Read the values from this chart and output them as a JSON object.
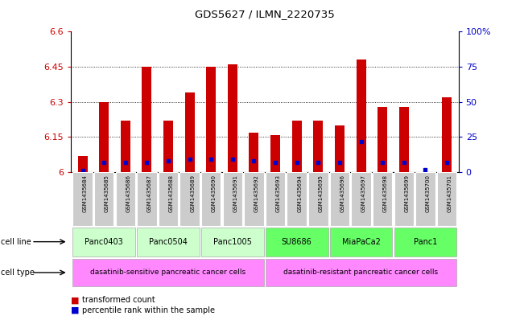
{
  "title": "GDS5627 / ILMN_2220735",
  "samples": [
    "GSM1435684",
    "GSM1435685",
    "GSM1435686",
    "GSM1435687",
    "GSM1435688",
    "GSM1435689",
    "GSM1435690",
    "GSM1435691",
    "GSM1435692",
    "GSM1435693",
    "GSM1435694",
    "GSM1435695",
    "GSM1435696",
    "GSM1435697",
    "GSM1435698",
    "GSM1435699",
    "GSM1435700",
    "GSM1435701"
  ],
  "transformed_count": [
    6.07,
    6.3,
    6.22,
    6.45,
    6.22,
    6.34,
    6.45,
    6.46,
    6.17,
    6.16,
    6.22,
    6.22,
    6.2,
    6.48,
    6.28,
    6.28,
    6.0,
    6.32
  ],
  "percentile_rank": [
    1,
    7,
    7,
    7,
    8,
    9,
    9,
    9,
    8,
    7,
    7,
    7,
    7,
    22,
    7,
    7,
    2,
    7
  ],
  "cell_lines": [
    {
      "name": "Panc0403",
      "start": 0,
      "end": 2,
      "color": "#ccffcc"
    },
    {
      "name": "Panc0504",
      "start": 3,
      "end": 5,
      "color": "#ccffcc"
    },
    {
      "name": "Panc1005",
      "start": 6,
      "end": 8,
      "color": "#ccffcc"
    },
    {
      "name": "SU8686",
      "start": 9,
      "end": 11,
      "color": "#66ff66"
    },
    {
      "name": "MiaPaCa2",
      "start": 12,
      "end": 14,
      "color": "#66ff66"
    },
    {
      "name": "Panc1",
      "start": 15,
      "end": 17,
      "color": "#66ff66"
    }
  ],
  "cell_types": [
    {
      "name": "dasatinib-sensitive pancreatic cancer cells",
      "start": 0,
      "end": 8
    },
    {
      "name": "dasatinib-resistant pancreatic cancer cells",
      "start": 9,
      "end": 17
    }
  ],
  "ymin": 6.0,
  "ymax": 6.6,
  "yticks": [
    6.0,
    6.15,
    6.3,
    6.45,
    6.6
  ],
  "ytick_labels": [
    "6",
    "6.15",
    "6.3",
    "6.45",
    "6.6"
  ],
  "grid_lines": [
    6.15,
    6.3,
    6.45
  ],
  "right_yticks": [
    0,
    25,
    50,
    75,
    100
  ],
  "right_ytick_labels": [
    "0",
    "25",
    "50",
    "75",
    "100%"
  ],
  "bar_color": "#cc0000",
  "dot_color": "#0000cc",
  "sample_bg_color": "#cccccc",
  "celltype_color": "#ff88ff",
  "cellline_sensitive_color": "#ccffcc",
  "cellline_resistant_color": "#66ff66"
}
